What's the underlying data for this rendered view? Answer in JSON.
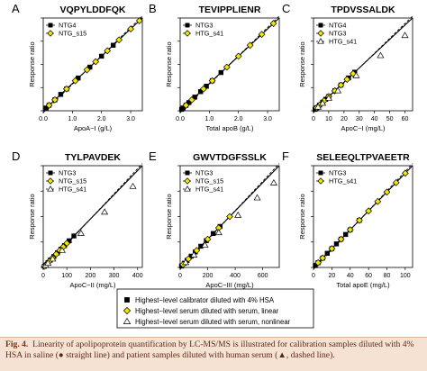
{
  "caption": {
    "label": "Fig. 4.",
    "text": "Linearity of apolipoprotein quantification by LC-MS/MS is illustrated for calibration samples diluted with 4% HSA in saline (● straight line) and patient samples diluted with human serum (▲, dashed line).",
    "color": "#5a2a14",
    "background": "#f5e2d2"
  },
  "legend_bottom": {
    "items": [
      "Highest−level calibrator diluted with 4% HSA",
      "Highest−level serum diluted with serum, linear",
      "Highest−level serum diluted with serum, nonlinear"
    ]
  },
  "colors": {
    "calibrator": "#000000",
    "serum_linear": "#f2e600",
    "serum_nonlinear": "#ffffff",
    "outline": "#000000"
  },
  "chart_data": [
    {
      "type": "scatter",
      "panel": "A",
      "title": "VQPYLDDFQK",
      "xlabel": "ApoA−I (g/L)",
      "ylabel": "Response ratio",
      "xticks": [
        "0.0",
        "1.0",
        "2.0",
        "3.0"
      ],
      "xlim": [
        0,
        3.4
      ],
      "series": [
        {
          "name": "NTG4",
          "marker": "square",
          "x": [
            0.1,
            0.2,
            0.4,
            0.6,
            0.8,
            1.2,
            1.6,
            2.0,
            2.4
          ]
        },
        {
          "name": "NTG_s15",
          "marker": "diamond",
          "x": [
            0.2,
            0.4,
            0.8,
            1.1,
            1.5,
            1.8,
            2.2,
            2.6,
            3.0,
            3.3
          ]
        }
      ]
    },
    {
      "type": "scatter",
      "panel": "B",
      "title": "TEVIPPLIENR",
      "xlabel": "Total apoB (g/L)",
      "ylabel": "Response ratio",
      "xticks": [
        "0.0",
        "1.0",
        "2.0",
        "3.0"
      ],
      "xlim": [
        0,
        3.4
      ],
      "series": [
        {
          "name": "NTG3",
          "marker": "square",
          "x": [
            0.05,
            0.1,
            0.2,
            0.3,
            0.5,
            0.7,
            0.9,
            1.1,
            1.4
          ]
        },
        {
          "name": "HTG_s41",
          "marker": "diamond",
          "x": [
            0.2,
            0.4,
            0.8,
            1.1,
            1.6,
            2.0,
            2.4,
            2.8,
            3.2
          ]
        }
      ]
    },
    {
      "type": "scatter",
      "panel": "C",
      "title": "TPDVSSALDK",
      "xlabel": "ApoC−I (mg/L)",
      "ylabel": "Response ratio",
      "xticks": [
        "0",
        "10",
        "20",
        "30",
        "40",
        "50",
        "60"
      ],
      "xlim": [
        0,
        65
      ],
      "series": [
        {
          "name": "NTG4",
          "marker": "square",
          "x": [
            1,
            2,
            4,
            6,
            8,
            10,
            14,
            18,
            23,
            27
          ]
        },
        {
          "name": "NTG3",
          "marker": "diamond",
          "x": [
            2,
            4,
            7,
            10,
            14,
            18,
            22,
            26
          ]
        },
        {
          "name": "HTG_s41",
          "marker": "triangle",
          "x": [
            3,
            6,
            10,
            16,
            28,
            44,
            60
          ]
        }
      ]
    },
    {
      "type": "scatter",
      "panel": "D",
      "title": "TYLPAVDEK",
      "xlabel": "ApoC−II (mg/L)",
      "ylabel": "Response ratio",
      "xticks": [
        "0",
        "100",
        "200",
        "300",
        "400"
      ],
      "xlim": [
        0,
        420
      ],
      "series": [
        {
          "name": "NTG3",
          "marker": "square",
          "x": [
            5,
            10,
            20,
            30,
            45,
            60,
            75,
            90,
            110,
            130
          ]
        },
        {
          "name": "NTG_s15",
          "marker": "diamond",
          "x": [
            5,
            15,
            25,
            40,
            55,
            70,
            85,
            100
          ]
        },
        {
          "name": "HTG_s41",
          "marker": "triangle",
          "x": [
            10,
            20,
            40,
            80,
            160,
            260,
            380
          ]
        }
      ]
    },
    {
      "type": "scatter",
      "panel": "E",
      "title": "GWVTDGFSSLK",
      "xlabel": "ApoC−III (mg/L)",
      "ylabel": "Response ratio",
      "xticks": [
        "0",
        "200",
        "400",
        "600"
      ],
      "xlim": [
        0,
        720
      ],
      "series": [
        {
          "name": "NTG3",
          "marker": "square",
          "x": [
            10,
            30,
            50,
            80,
            110,
            150,
            190,
            240,
            290
          ]
        },
        {
          "name": "NTG_s15",
          "marker": "diamond",
          "x": [
            20,
            60,
            120,
            200,
            280,
            360
          ]
        },
        {
          "name": "HTG_s41",
          "marker": "triangle",
          "x": [
            40,
            100,
            180,
            280,
            420,
            560,
            680
          ]
        }
      ]
    },
    {
      "type": "scatter",
      "panel": "F",
      "title": "SELEEQLTPVAEETR",
      "xlabel": "Total apoE (mg/L)",
      "ylabel": "Response ratio",
      "xticks": [
        "0",
        "20",
        "40",
        "60",
        "80",
        "100"
      ],
      "xlim": [
        0,
        108
      ],
      "series": [
        {
          "name": "NTG3",
          "marker": "square",
          "x": [
            2,
            5,
            10,
            15,
            20,
            25,
            30,
            35,
            40,
            50
          ]
        },
        {
          "name": "HTG_s41",
          "marker": "diamond",
          "x": [
            5,
            10,
            20,
            30,
            40,
            50,
            60,
            70,
            80,
            90,
            100
          ]
        }
      ]
    }
  ]
}
